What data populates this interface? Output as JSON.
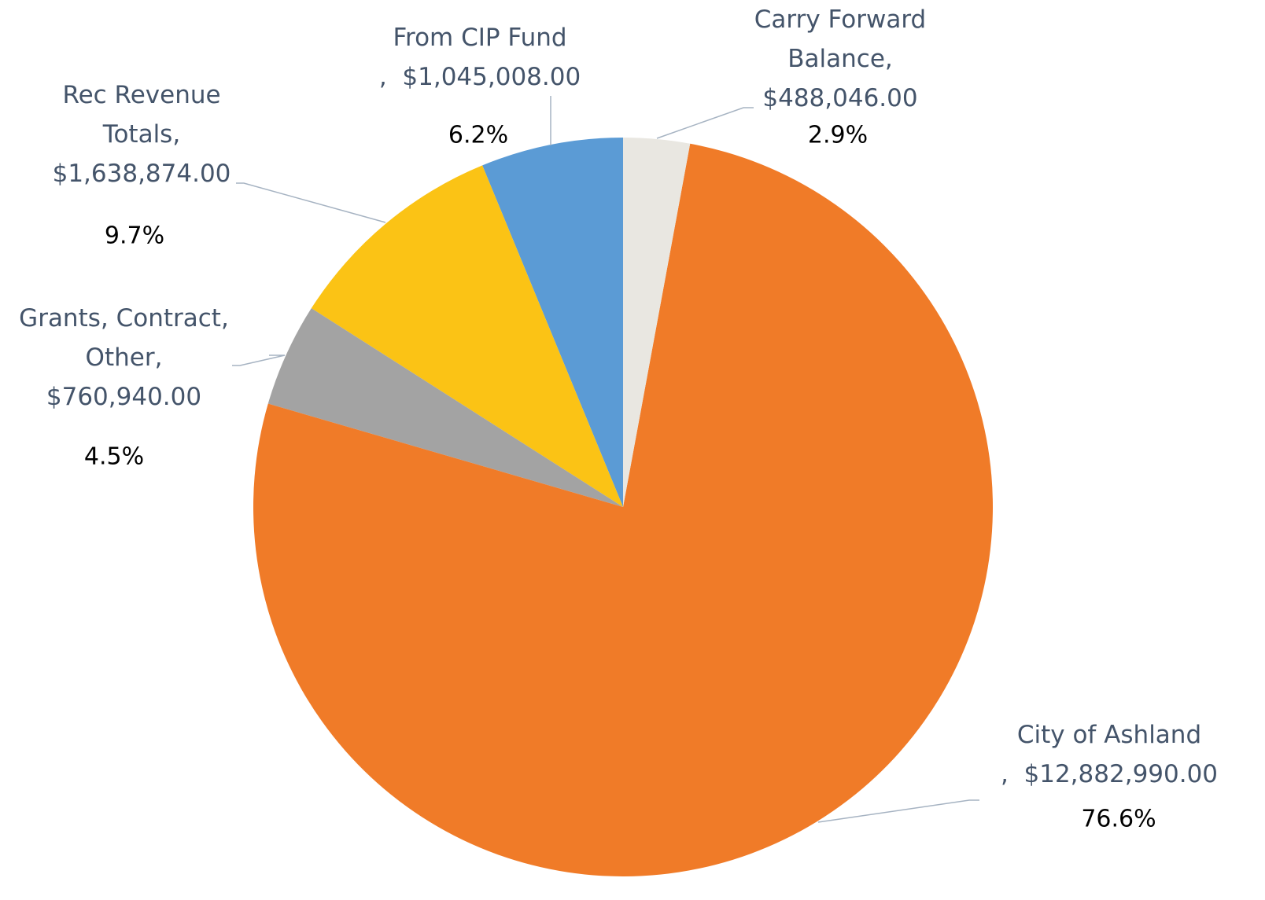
{
  "chart_data": {
    "type": "pie",
    "categories": [
      "Carry Forward Balance",
      "City of Ashland",
      "Grants, Contract, Other",
      "Rec Revenue Totals",
      "From CIP Fund"
    ],
    "values": [
      488046,
      12882990,
      760940,
      1638874,
      1045008
    ],
    "value_labels": [
      "$488,046.00",
      "$12,882,990.00",
      "$760,940.00",
      "$1,638,874.00",
      "$1,045,008.00"
    ],
    "percent_labels": [
      "2.9%",
      "76.6%",
      "4.5%",
      "9.7%",
      "6.2%"
    ],
    "separator": ",",
    "colors": [
      "#e9e7e1",
      "#f07b28",
      "#a3a3a3",
      "#fbc315",
      "#5b9bd5"
    ]
  }
}
